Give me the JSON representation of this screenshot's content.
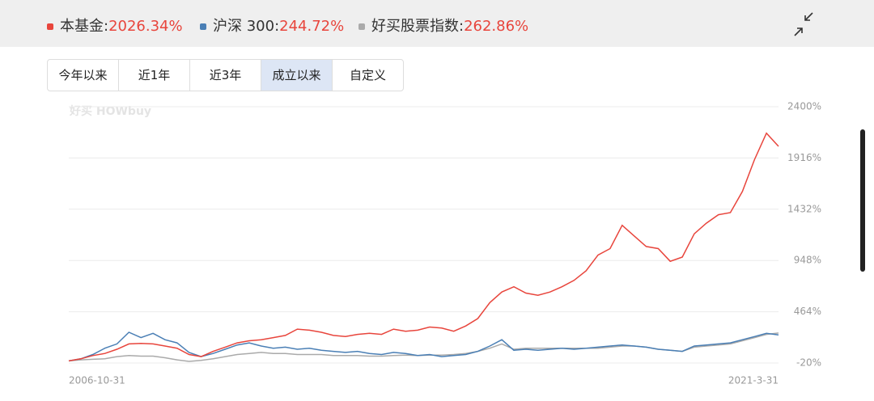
{
  "legend_values": [
    "2026.34%",
    "244.72%",
    "262.86%"
  ],
  "buttons": [
    "今年以来",
    "近1年",
    "近3年",
    "成立以来",
    "自定义"
  ],
  "selected_button": 3,
  "watermark": "好买 HOWbuy",
  "chart_data": {
    "type": "line",
    "categories": [
      "2006-10-31",
      null,
      null,
      null,
      null,
      null,
      null,
      null,
      null,
      null,
      null,
      null,
      null,
      null,
      null,
      null,
      null,
      null,
      null,
      null,
      null,
      null,
      null,
      null,
      null,
      null,
      null,
      null,
      null,
      null,
      null,
      null,
      null,
      null,
      null,
      null,
      null,
      null,
      null,
      null,
      null,
      null,
      null,
      null,
      null,
      null,
      null,
      null,
      null,
      null,
      null,
      null,
      null,
      null,
      null,
      null,
      null,
      null,
      null,
      "2021-3-31"
    ],
    "series": [
      {
        "name": "本基金",
        "color": "#e8453c",
        "values": [
          0,
          20,
          50,
          70,
          110,
          160,
          165,
          160,
          140,
          120,
          60,
          40,
          90,
          130,
          170,
          190,
          200,
          220,
          240,
          300,
          290,
          270,
          240,
          230,
          250,
          260,
          250,
          300,
          280,
          290,
          320,
          310,
          280,
          330,
          400,
          550,
          650,
          700,
          640,
          620,
          650,
          700,
          760,
          850,
          1000,
          1060,
          1280,
          1180,
          1080,
          1060,
          940,
          980,
          1200,
          1300,
          1380,
          1400,
          1600,
          1900,
          2150,
          2026
        ]
      },
      {
        "name": "沪深 300",
        "color": "#4a7fb5",
        "values": [
          0,
          20,
          60,
          120,
          160,
          270,
          220,
          260,
          200,
          170,
          80,
          40,
          70,
          110,
          150,
          170,
          140,
          120,
          130,
          110,
          120,
          100,
          90,
          80,
          90,
          70,
          60,
          80,
          70,
          50,
          60,
          40,
          50,
          60,
          90,
          140,
          200,
          100,
          110,
          100,
          110,
          120,
          110,
          120,
          130,
          140,
          150,
          140,
          130,
          110,
          100,
          90,
          140,
          150,
          160,
          170,
          200,
          230,
          260,
          245
        ]
      },
      {
        "name": "好买股票指数",
        "color": "#aaaaaa",
        "values": [
          0,
          10,
          15,
          20,
          40,
          50,
          45,
          45,
          30,
          10,
          -5,
          5,
          20,
          40,
          60,
          70,
          80,
          70,
          70,
          60,
          60,
          60,
          50,
          50,
          50,
          45,
          45,
          50,
          55,
          50,
          55,
          55,
          60,
          70,
          90,
          120,
          160,
          110,
          120,
          120,
          120,
          120,
          120,
          120,
          120,
          130,
          140,
          140,
          130,
          110,
          100,
          90,
          130,
          140,
          150,
          160,
          190,
          220,
          250,
          263
        ]
      }
    ],
    "ylim": [
      -20,
      2400
    ],
    "yticks": [
      {
        "value": -20,
        "label": "-20%"
      },
      {
        "value": 464,
        "label": "464%"
      },
      {
        "value": 948,
        "label": "948%"
      },
      {
        "value": 1432,
        "label": "1432%"
      },
      {
        "value": 1916,
        "label": "1916%"
      },
      {
        "value": 2400,
        "label": "2400%"
      }
    ],
    "grid": true
  }
}
